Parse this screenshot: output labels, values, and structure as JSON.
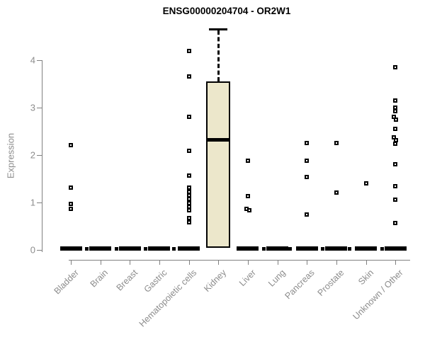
{
  "title": "ENSG00000204704 - OR2W1",
  "colors": {
    "box_fill": "#ece7cb",
    "box_border": "#000000",
    "axis": "#808080",
    "label_gray": "#8c8c8c",
    "title_color": "#000000",
    "point_color": "#000000"
  },
  "chart_data": {
    "type": "boxplot",
    "title": "ENSG00000204704 - OR2W1",
    "xlabel": "",
    "ylabel": "Expression",
    "ylim": [
      0,
      4.7
    ],
    "yticks": [
      0,
      1,
      2,
      3,
      4
    ],
    "grid": false,
    "legend": false,
    "categories": [
      "Bladder",
      "Brain",
      "Breast",
      "Gastric",
      "Hematopoietic cells",
      "Kidney",
      "Liver",
      "Lung",
      "Pancreas",
      "Prostate",
      "Skin",
      "Unknown / Other"
    ],
    "boxes": [
      {
        "category": "Bladder",
        "q1": 0,
        "median": 0,
        "q3": 0,
        "whisker_low": 0,
        "whisker_high": 0,
        "zero_jitter_offsets": [
          22
        ],
        "outliers": [
          [
            2.21,
            0
          ],
          [
            1.31,
            0
          ],
          [
            0.97,
            0
          ],
          [
            0.87,
            0
          ]
        ]
      },
      {
        "category": "Brain",
        "q1": 0,
        "median": 0,
        "q3": 0,
        "whisker_low": 0,
        "whisker_high": 0,
        "zero_jitter_offsets": [
          22
        ],
        "outliers": []
      },
      {
        "category": "Breast",
        "q1": 0,
        "median": 0,
        "q3": 0,
        "whisker_low": 0,
        "whisker_high": 0,
        "zero_jitter_offsets": [
          22
        ],
        "outliers": []
      },
      {
        "category": "Gastric",
        "q1": 0,
        "median": 0,
        "q3": 0,
        "whisker_low": 0,
        "whisker_high": 0,
        "zero_jitter_offsets": [
          20
        ],
        "outliers": []
      },
      {
        "category": "Hematopoietic cells",
        "q1": 0,
        "median": 0,
        "q3": 0,
        "whisker_low": 0,
        "whisker_high": 0,
        "zero_jitter_offsets": [],
        "outliers": [
          [
            4.19,
            0
          ],
          [
            3.65,
            0
          ],
          [
            2.81,
            0
          ],
          [
            2.09,
            0
          ],
          [
            1.57,
            0
          ],
          [
            1.31,
            0
          ],
          [
            1.23,
            0
          ],
          [
            1.15,
            0
          ],
          [
            1.07,
            0
          ],
          [
            0.99,
            0
          ],
          [
            0.91,
            0
          ],
          [
            0.83,
            0
          ],
          [
            0.67,
            0
          ],
          [
            0.58,
            0
          ]
        ]
      },
      {
        "category": "Kidney",
        "q1": 0.05,
        "median": 2.33,
        "q3": 3.55,
        "whisker_low": 0.05,
        "whisker_high": 4.62,
        "zero_jitter_offsets": [],
        "outliers": [],
        "full_box": true
      },
      {
        "category": "Liver",
        "q1": 0,
        "median": 0,
        "q3": 0,
        "whisker_low": 0,
        "whisker_high": 0,
        "zero_jitter_offsets": [
          22
        ],
        "outliers": [
          [
            1.88,
            0
          ],
          [
            1.13,
            0
          ],
          [
            0.86,
            -2
          ],
          [
            0.84,
            2
          ]
        ]
      },
      {
        "category": "Lung",
        "q1": 0,
        "median": 0,
        "q3": 0,
        "whisker_low": 0,
        "whisker_high": 0,
        "zero_jitter_offsets": [
          17
        ],
        "outliers": []
      },
      {
        "category": "Pancreas",
        "q1": 0,
        "median": 0,
        "q3": 0,
        "whisker_low": 0,
        "whisker_high": 0,
        "zero_jitter_offsets": [
          22
        ],
        "outliers": [
          [
            2.25,
            0
          ],
          [
            1.88,
            0
          ],
          [
            1.54,
            0
          ],
          [
            0.75,
            0
          ]
        ]
      },
      {
        "category": "Prostate",
        "q1": 0,
        "median": 0,
        "q3": 0,
        "whisker_low": 0,
        "whisker_high": 0,
        "zero_jitter_offsets": [
          18
        ],
        "outliers": [
          [
            2.26,
            0
          ],
          [
            1.21,
            0
          ]
        ]
      },
      {
        "category": "Skin",
        "q1": 0,
        "median": 0,
        "q3": 0,
        "whisker_low": 0,
        "whisker_high": 0,
        "zero_jitter_offsets": [
          22
        ],
        "outliers": [
          [
            1.4,
            0
          ]
        ]
      },
      {
        "category": "Unknown / Other",
        "q1": 0,
        "median": 0,
        "q3": 0,
        "whisker_low": 0,
        "whisker_high": 0,
        "zero_jitter_offsets": [],
        "outliers": [
          [
            3.85,
            0
          ],
          [
            3.15,
            0
          ],
          [
            3.0,
            0
          ],
          [
            2.93,
            0
          ],
          [
            2.81,
            -2
          ],
          [
            2.75,
            1
          ],
          [
            2.55,
            0
          ],
          [
            2.37,
            -2
          ],
          [
            2.32,
            1
          ],
          [
            2.24,
            0
          ],
          [
            1.81,
            0
          ],
          [
            1.34,
            0
          ],
          [
            1.06,
            0
          ],
          [
            0.57,
            0
          ]
        ]
      }
    ]
  }
}
